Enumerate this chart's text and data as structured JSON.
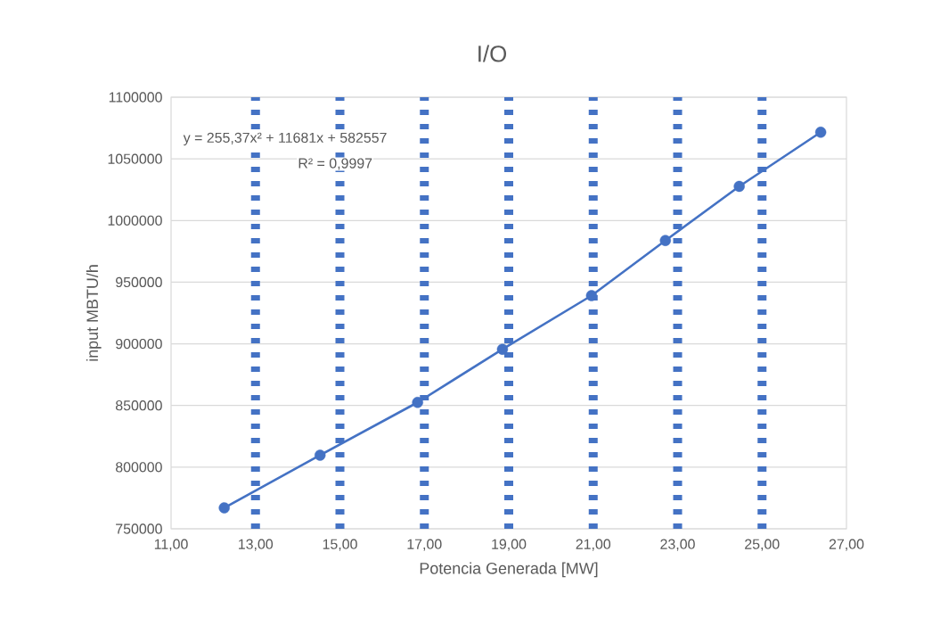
{
  "chart_data": {
    "type": "scatter",
    "title": "I/O",
    "xlabel": "Potencia Generada [MW]",
    "ylabel": "input MBTU/h",
    "series": [
      {
        "color": "#4472c4",
        "marker": "circle",
        "x": [
          12.26,
          14.53,
          16.84,
          18.85,
          20.96,
          22.71,
          24.46,
          26.39
        ],
        "values": [
          767000,
          809700,
          852500,
          895600,
          939100,
          983800,
          1027700,
          1071600
        ]
      },
      {
        "type": "line",
        "color": "#4472c4",
        "line_style": "solid",
        "x": [
          12.26,
          14.53,
          16.84,
          18.85,
          20.96,
          22.71,
          24.46,
          26.39
        ],
        "values": [
          767000,
          809700,
          852500,
          895600,
          939100,
          983800,
          1027700,
          1071600
        ]
      }
    ],
    "xlim": [
      11,
      27
    ],
    "ylim": [
      750000,
      1100000
    ],
    "xticks": [
      {
        "value": 11,
        "label": "11,00"
      },
      {
        "value": 13,
        "label": "13,00"
      },
      {
        "value": 15,
        "label": "15,00"
      },
      {
        "value": 17,
        "label": "17,00"
      },
      {
        "value": 19,
        "label": "19,00"
      },
      {
        "value": 21,
        "label": "21,00"
      },
      {
        "value": 23,
        "label": "23,00"
      },
      {
        "value": 25,
        "label": "25,00"
      },
      {
        "value": 27,
        "label": "27,00"
      }
    ],
    "yticks": [
      750000,
      800000,
      850000,
      900000,
      950000,
      1000000,
      1050000,
      1100000
    ],
    "grid": "y",
    "ref_lines": [
      {
        "axis": "x",
        "value": 13,
        "color": "#4472c4",
        "line_style": "dotted"
      },
      {
        "axis": "x",
        "value": 15,
        "color": "#4472c4",
        "line_style": "dotted"
      },
      {
        "axis": "x",
        "value": 17,
        "color": "#4472c4",
        "line_style": "dotted"
      },
      {
        "axis": "x",
        "value": 19,
        "color": "#4472c4",
        "line_style": "dotted"
      },
      {
        "axis": "x",
        "value": 21,
        "color": "#4472c4",
        "line_style": "dotted"
      },
      {
        "axis": "x",
        "value": 23,
        "color": "#4472c4",
        "line_style": "dotted"
      },
      {
        "axis": "x",
        "value": 25,
        "color": "#4472c4",
        "line_style": "dotted"
      }
    ],
    "annotations": [
      "y = 255,37x² + 11681x + 582557",
      "R² = 0,9997"
    ]
  }
}
